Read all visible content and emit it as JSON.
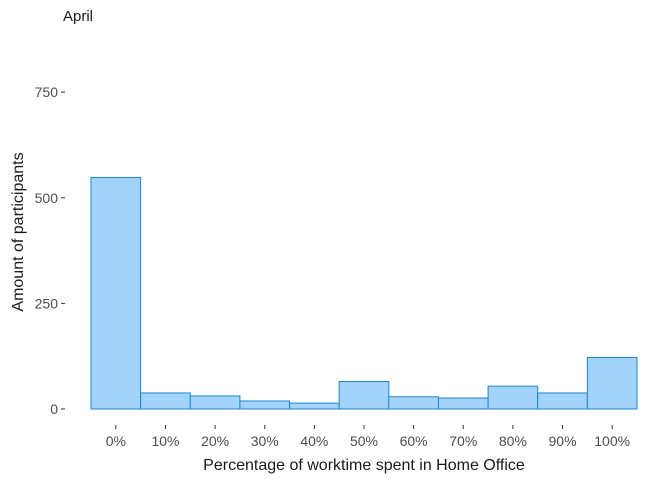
{
  "chart_data": {
    "type": "bar",
    "title": "April",
    "xlabel": "Percentage of worktime spent in Home Office",
    "ylabel": "Amount of participants",
    "categories": [
      "0%",
      "10%",
      "20%",
      "30%",
      "40%",
      "50%",
      "60%",
      "70%",
      "80%",
      "90%",
      "100%"
    ],
    "values": [
      548,
      38,
      31,
      19,
      14,
      65,
      29,
      26,
      54,
      38,
      122
    ],
    "ylim": [
      0,
      800
    ],
    "yticks": [
      0,
      250,
      500,
      750
    ],
    "ytick_labels": [
      "0",
      "250",
      "500",
      "750"
    ],
    "grid": false,
    "bar_fill": "#a3d2fa",
    "bar_stroke": "#1f86cc"
  }
}
